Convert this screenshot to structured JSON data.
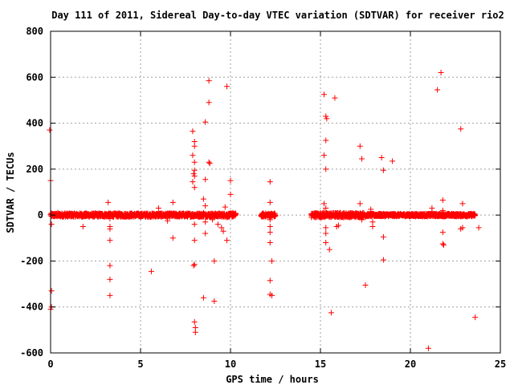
{
  "chart_data": {
    "type": "scatter",
    "title": "Day 111 of 2011, Sidereal Day-to-day VTEC variation (SDTVAR) for receiver rio2",
    "xlabel": "GPS time / hours",
    "ylabel": "SDTVAR / TECUs",
    "xlim": [
      0,
      25
    ],
    "ylim": [
      -600,
      800
    ],
    "xticks": [
      "0",
      "5",
      "10",
      "15",
      "20",
      "25"
    ],
    "yticks": [
      "-600",
      "-400",
      "-200",
      "0",
      "200",
      "400",
      "600",
      "800"
    ],
    "grid": true,
    "marker": "+",
    "color": "#ff0000",
    "dense_bands": [
      {
        "x": [
          0.0,
          10.3
        ],
        "y": [
          -8,
          8
        ]
      },
      {
        "x": [
          11.7,
          12.5
        ],
        "y": [
          -8,
          8
        ]
      },
      {
        "x": [
          14.5,
          17.5
        ],
        "y": [
          -10,
          10
        ]
      },
      {
        "x": [
          17.5,
          23.6
        ],
        "y": [
          -6,
          6
        ]
      }
    ],
    "points": [
      [
        -0.05,
        370
      ],
      [
        0.0,
        150
      ],
      [
        0.05,
        -330
      ],
      [
        0.0,
        -410
      ],
      [
        0.05,
        -400
      ],
      [
        0.05,
        -40
      ],
      [
        0.4,
        10
      ],
      [
        0.8,
        8
      ],
      [
        1.8,
        -50
      ],
      [
        3.2,
        55
      ],
      [
        3.3,
        -15
      ],
      [
        3.3,
        -50
      ],
      [
        3.3,
        -60
      ],
      [
        3.3,
        -110
      ],
      [
        3.3,
        -220
      ],
      [
        3.3,
        -280
      ],
      [
        3.3,
        -350
      ],
      [
        5.6,
        -245
      ],
      [
        6.0,
        30
      ],
      [
        6.5,
        -25
      ],
      [
        6.8,
        -100
      ],
      [
        6.8,
        55
      ],
      [
        7.9,
        365
      ],
      [
        8.0,
        300
      ],
      [
        8.0,
        320
      ],
      [
        7.9,
        260
      ],
      [
        8.0,
        230
      ],
      [
        8.0,
        195
      ],
      [
        7.95,
        180
      ],
      [
        8.0,
        170
      ],
      [
        7.9,
        145
      ],
      [
        8.0,
        120
      ],
      [
        8.0,
        -40
      ],
      [
        8.0,
        -110
      ],
      [
        8.0,
        -215
      ],
      [
        7.95,
        -220
      ],
      [
        8.0,
        -465
      ],
      [
        8.05,
        -490
      ],
      [
        8.05,
        -510
      ],
      [
        8.6,
        155
      ],
      [
        8.5,
        70
      ],
      [
        8.6,
        40
      ],
      [
        8.5,
        10
      ],
      [
        8.6,
        -30
      ],
      [
        8.6,
        -80
      ],
      [
        8.5,
        -360
      ],
      [
        8.6,
        405
      ],
      [
        8.8,
        585
      ],
      [
        8.8,
        490
      ],
      [
        8.8,
        230
      ],
      [
        8.85,
        225
      ],
      [
        9.0,
        -20
      ],
      [
        9.1,
        -200
      ],
      [
        9.1,
        -375
      ],
      [
        9.3,
        -40
      ],
      [
        9.5,
        -55
      ],
      [
        9.6,
        -70
      ],
      [
        9.7,
        35
      ],
      [
        9.8,
        560
      ],
      [
        9.8,
        -10
      ],
      [
        9.8,
        -110
      ],
      [
        10.0,
        150
      ],
      [
        10.0,
        90
      ],
      [
        10.1,
        10
      ],
      [
        12.2,
        145
      ],
      [
        12.2,
        55
      ],
      [
        12.2,
        -20
      ],
      [
        12.2,
        -50
      ],
      [
        12.2,
        -75
      ],
      [
        12.2,
        -120
      ],
      [
        12.3,
        -200
      ],
      [
        12.2,
        -285
      ],
      [
        12.2,
        -345
      ],
      [
        12.3,
        -350
      ],
      [
        14.5,
        -10
      ],
      [
        15.2,
        50
      ],
      [
        15.3,
        30
      ],
      [
        15.2,
        15
      ],
      [
        15.3,
        -55
      ],
      [
        15.3,
        -80
      ],
      [
        15.3,
        -120
      ],
      [
        15.2,
        525
      ],
      [
        15.3,
        430
      ],
      [
        15.35,
        420
      ],
      [
        15.3,
        325
      ],
      [
        15.2,
        260
      ],
      [
        15.3,
        200
      ],
      [
        15.5,
        -150
      ],
      [
        15.6,
        -425
      ],
      [
        15.8,
        510
      ],
      [
        15.9,
        -50
      ],
      [
        16.0,
        -45
      ],
      [
        16.1,
        10
      ],
      [
        17.2,
        300
      ],
      [
        17.3,
        245
      ],
      [
        17.2,
        50
      ],
      [
        17.3,
        -20
      ],
      [
        17.5,
        -305
      ],
      [
        17.8,
        25
      ],
      [
        17.9,
        -50
      ],
      [
        17.9,
        -30
      ],
      [
        18.4,
        250
      ],
      [
        18.5,
        195
      ],
      [
        18.5,
        -95
      ],
      [
        18.5,
        -195
      ],
      [
        19.0,
        235
      ],
      [
        21.0,
        -580
      ],
      [
        21.2,
        30
      ],
      [
        21.2,
        15
      ],
      [
        21.5,
        545
      ],
      [
        21.7,
        620
      ],
      [
        21.8,
        65
      ],
      [
        21.8,
        20
      ],
      [
        21.8,
        -75
      ],
      [
        21.8,
        -125
      ],
      [
        21.85,
        -130
      ],
      [
        22.8,
        375
      ],
      [
        22.9,
        50
      ],
      [
        22.8,
        -60
      ],
      [
        22.9,
        -55
      ],
      [
        23.6,
        -445
      ],
      [
        23.8,
        -55
      ]
    ]
  }
}
